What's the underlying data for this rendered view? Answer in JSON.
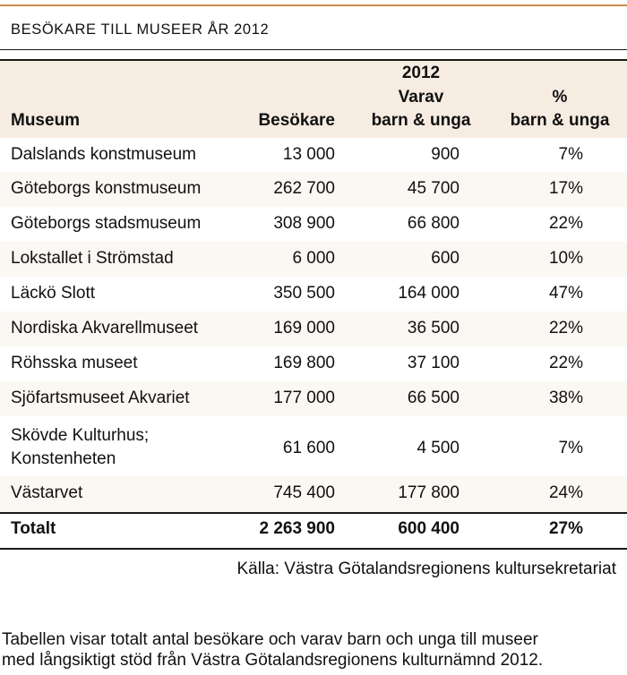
{
  "table": {
    "title": "BESÖKARE TILL MUSEER ÅR 2012",
    "header": {
      "year": "2012",
      "museum": "Museum",
      "visitors": "Besökare",
      "varav": "Varav",
      "varav_sub": "barn & unga",
      "pct": "%",
      "pct_sub": "barn & unga"
    },
    "rows": [
      {
        "museum": "Dalslands konstmuseum",
        "visitors": "13 000",
        "youth": "900",
        "pct": "7%"
      },
      {
        "museum": "Göteborgs konstmuseum",
        "visitors": "262 700",
        "youth": "45 700",
        "pct": "17%"
      },
      {
        "museum": "Göteborgs stadsmuseum",
        "visitors": "308 900",
        "youth": "66 800",
        "pct": "22%"
      },
      {
        "museum": "Lokstallet i Strömstad",
        "visitors": "6 000",
        "youth": "600",
        "pct": "10%"
      },
      {
        "museum": "Läckö Slott",
        "visitors": "350 500",
        "youth": "164 000",
        "pct": "47%"
      },
      {
        "museum": "Nordiska Akvarellmuseet",
        "visitors": "169 000",
        "youth": "36 500",
        "pct": "22%"
      },
      {
        "museum": "Röhsska museet",
        "visitors": "169 800",
        "youth": "37 100",
        "pct": "22%"
      },
      {
        "museum": "Sjöfartsmuseet Akvariet",
        "visitors": "177 000",
        "youth": "66 500",
        "pct": "38%"
      },
      {
        "museum": "Skövde Kulturhus;",
        "museum_line2": "Konstenheten",
        "visitors": "61 600",
        "youth": "4 500",
        "pct": "7%"
      },
      {
        "museum": "Västarvet",
        "visitors": "745 400",
        "youth": "177 800",
        "pct": "24%"
      }
    ],
    "total": {
      "museum": "Totalt",
      "visitors": "2 263 900",
      "youth": "600 400",
      "pct": "27%"
    },
    "source": "Källa: Västra Götalandsregionens kultursekretariat"
  },
  "caption": {
    "line1": "Tabellen visar totalt antal besökare och varav barn och unga till museer",
    "line2": "med långsiktigt stöd från Västra Götalandsregionens kulturnämnd 2012."
  },
  "colors": {
    "accent_rule": "#c98a4e",
    "header_bg": "#f6ece2",
    "row_alt_bg": "#fbf7f2",
    "text": "#111111"
  }
}
